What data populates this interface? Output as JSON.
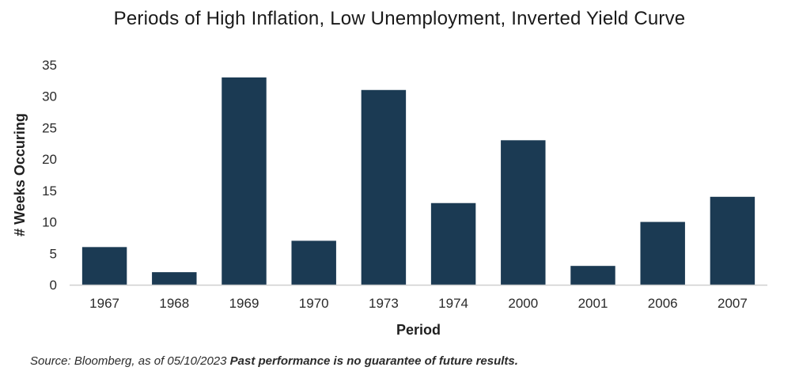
{
  "chart_data": {
    "type": "bar",
    "title": "Periods of High Inflation, Low Unemployment, Inverted Yield Curve",
    "xlabel": "Period",
    "ylabel": "# Weeks Occuring",
    "categories": [
      "1967",
      "1968",
      "1969",
      "1970",
      "1973",
      "1974",
      "2000",
      "2001",
      "2006",
      "2007"
    ],
    "values": [
      6,
      2,
      33,
      7,
      31,
      13,
      23,
      3,
      10,
      14
    ],
    "ylim": [
      0,
      35
    ],
    "yticks": [
      "0",
      "5",
      "10",
      "15",
      "20",
      "25",
      "30",
      "35"
    ],
    "grid": false,
    "legend": "none",
    "bar_color": "#1b3a53"
  },
  "footnote": {
    "source": "Source: Bloomberg, as of 05/10/2023",
    "disclaimer": "Past performance is no guarantee of future results."
  }
}
